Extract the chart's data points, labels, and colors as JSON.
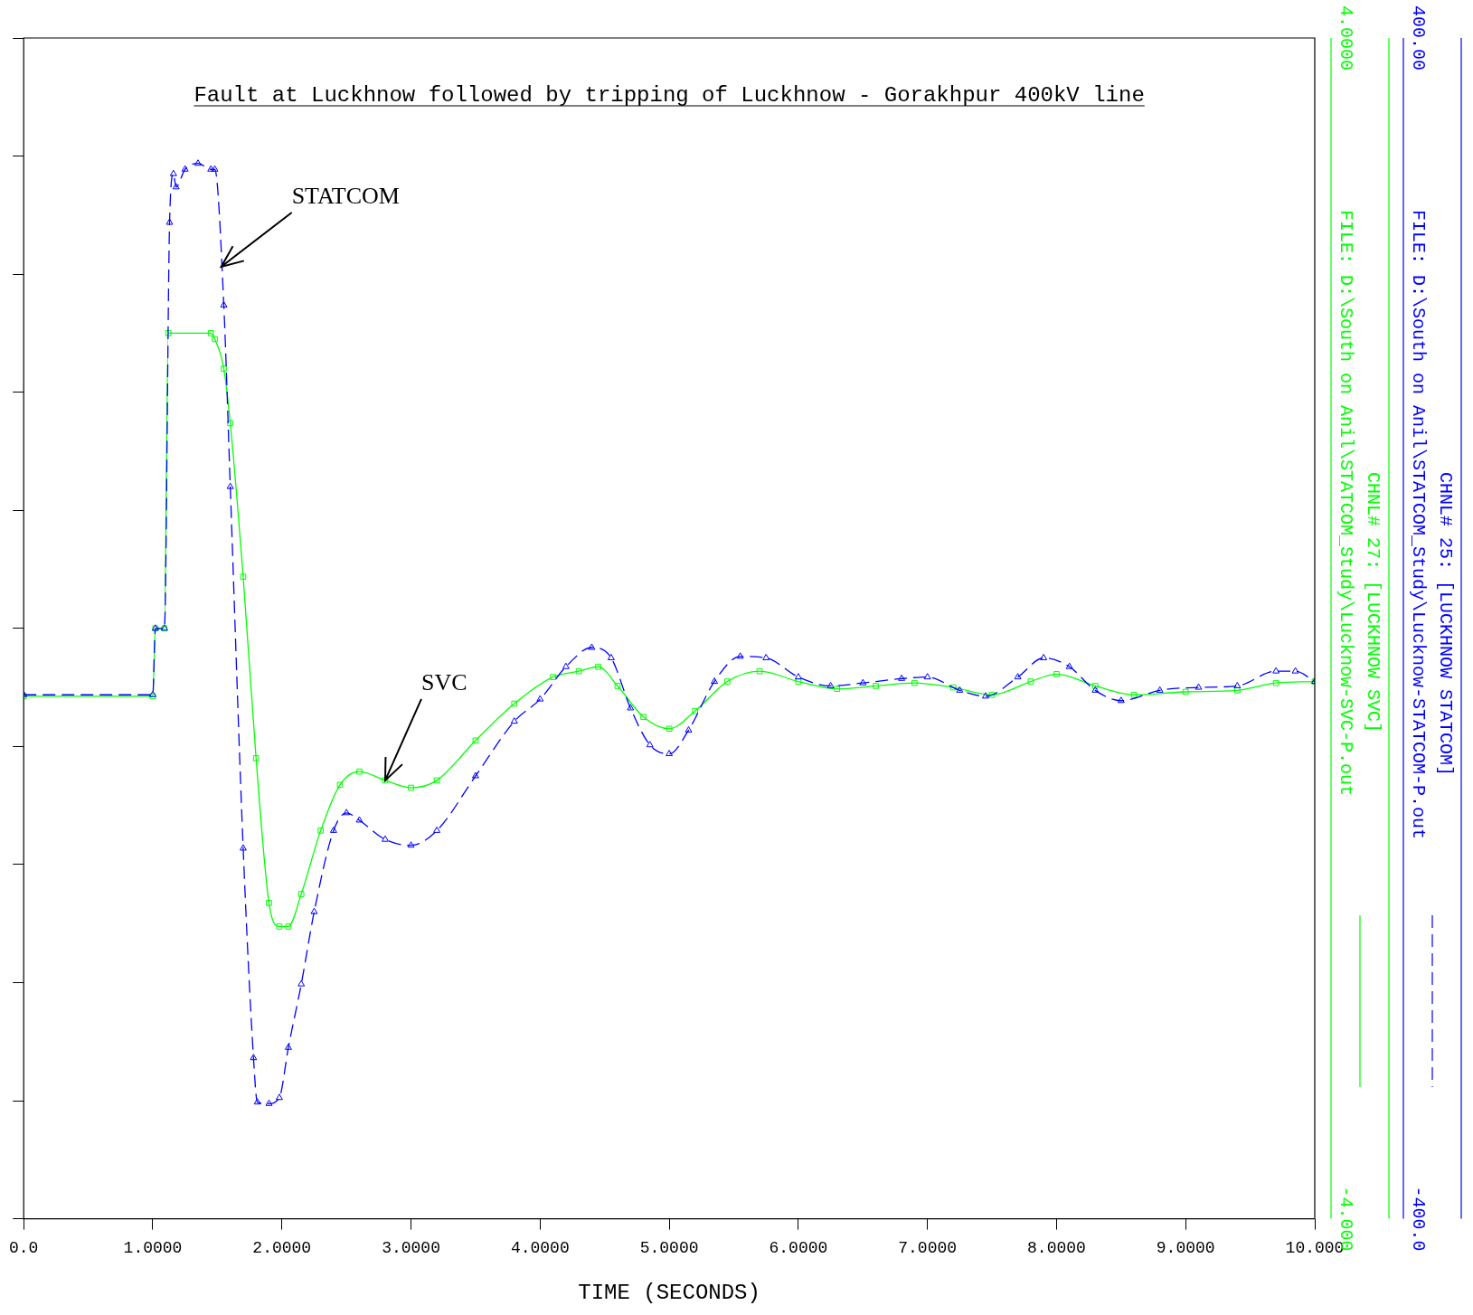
{
  "chart_data": {
    "type": "line",
    "title": "Fault at Luckhnow followed by tripping of Luckhnow - Gorakhpur 400kV line",
    "xlabel": "TIME (SECONDS)",
    "xlim": [
      0,
      10
    ],
    "xticks": [
      {
        "value": 0,
        "label": "0.0"
      },
      {
        "value": 1,
        "label": "1.0000"
      },
      {
        "value": 2,
        "label": "2.0000"
      },
      {
        "value": 3,
        "label": "3.0000"
      },
      {
        "value": 4,
        "label": "4.0000"
      },
      {
        "value": 5,
        "label": "5.0000"
      },
      {
        "value": 6,
        "label": "6.0000"
      },
      {
        "value": 7,
        "label": "7.0000"
      },
      {
        "value": 8,
        "label": "8.0000"
      },
      {
        "value": 9,
        "label": "9.0000"
      },
      {
        "value": 10,
        "label": "10.000"
      }
    ],
    "ylim": [
      -4,
      4
    ],
    "yticks": [
      {
        "value": -4,
        "label": "-4.000"
      },
      {
        "value": -3.2,
        "label": null
      },
      {
        "value": -2.4,
        "label": null
      },
      {
        "value": -1.6,
        "label": null
      },
      {
        "value": -0.8,
        "label": null
      },
      {
        "value": 0,
        "label": null
      },
      {
        "value": 0.8,
        "label": null
      },
      {
        "value": 1.6,
        "label": null
      },
      {
        "value": 2.4,
        "label": null
      },
      {
        "value": 3.2,
        "label": null
      },
      {
        "value": 4,
        "label": "4.0000"
      }
    ],
    "y2lim": [
      -400,
      400
    ],
    "y2ticks": [
      {
        "value": -400,
        "label": "-400.0"
      },
      {
        "value": 400,
        "label": "400.00"
      }
    ],
    "legend": "right",
    "series": [
      {
        "name": "CHNL# 27: [LUCKHNOW SVC]",
        "color": "#00ff00",
        "marker": "square",
        "line_style": "solid",
        "x": [
          0,
          1.0,
          1.02,
          1.09,
          1.12,
          1.45,
          1.48,
          1.55,
          1.6,
          1.7,
          1.8,
          1.9,
          1.98,
          2.05,
          2.15,
          2.3,
          2.45,
          2.6,
          2.8,
          3.0,
          3.2,
          3.5,
          3.8,
          4.1,
          4.3,
          4.45,
          4.6,
          4.8,
          5.0,
          5.2,
          5.45,
          5.7,
          6.0,
          6.3,
          6.6,
          6.9,
          7.2,
          7.5,
          7.8,
          8.0,
          8.3,
          8.6,
          9.0,
          9.4,
          9.7,
          10
        ],
        "values": [
          -0.46,
          -0.46,
          0,
          0,
          2.0,
          2.0,
          1.96,
          1.76,
          1.39,
          0.35,
          -0.88,
          -1.86,
          -2.02,
          -2.02,
          -1.8,
          -1.37,
          -1.06,
          -0.97,
          -1.03,
          -1.08,
          -1.03,
          -0.76,
          -0.51,
          -0.33,
          -0.29,
          -0.26,
          -0.39,
          -0.6,
          -0.68,
          -0.56,
          -0.36,
          -0.29,
          -0.36,
          -0.41,
          -0.39,
          -0.37,
          -0.4,
          -0.45,
          -0.36,
          -0.31,
          -0.39,
          -0.45,
          -0.43,
          -0.42,
          -0.37,
          -0.36
        ]
      },
      {
        "name": "CHNL# 25: [LUCKHNOW STATCOM]",
        "color": "#0000ff",
        "axis": "y2",
        "marker": "triangle",
        "line_style": "dashed",
        "x": [
          0,
          1.0,
          1.02,
          1.09,
          1.13,
          1.16,
          1.18,
          1.25,
          1.35,
          1.45,
          1.48,
          1.55,
          1.6,
          1.7,
          1.78,
          1.81,
          1.9,
          1.98,
          2.05,
          2.15,
          2.25,
          2.4,
          2.5,
          2.6,
          2.8,
          3.0,
          3.2,
          3.5,
          3.8,
          4.0,
          4.2,
          4.4,
          4.55,
          4.7,
          4.85,
          5.0,
          5.15,
          5.35,
          5.55,
          5.75,
          6.0,
          6.25,
          6.5,
          6.8,
          7.0,
          7.25,
          7.45,
          7.7,
          7.9,
          8.1,
          8.3,
          8.5,
          8.8,
          9.1,
          9.4,
          9.7,
          9.85,
          10
        ],
        "values": [
          -45,
          -45,
          0,
          0,
          275,
          308,
          299,
          311,
          315,
          311,
          311,
          219,
          96,
          -149,
          -291,
          -321,
          -322,
          -318,
          -284,
          -241,
          -192,
          -137,
          -125,
          -130,
          -143,
          -147,
          -137,
          -100,
          -63,
          -48,
          -26,
          -13,
          -20,
          -54,
          -79,
          -85,
          -69,
          -36,
          -19,
          -20,
          -33,
          -39,
          -37,
          -34,
          -33,
          -42,
          -46,
          -33,
          -20,
          -26,
          -42,
          -49,
          -42,
          -40,
          -39,
          -29,
          -29,
          -36
        ]
      }
    ],
    "annotations": [
      {
        "text": "STATCOM",
        "x": 1.53,
        "y": 2.45
      },
      {
        "text": "SVC",
        "x": 2.8,
        "y": -1.03
      },
      "FILE: D:\\South on Anil\\STATCOM_Study\\Lucknow-SVC-P.out",
      "FILE: D:\\South on Anil\\STATCOM_Study\\Lucknow-STATCOM-P.out"
    ]
  }
}
